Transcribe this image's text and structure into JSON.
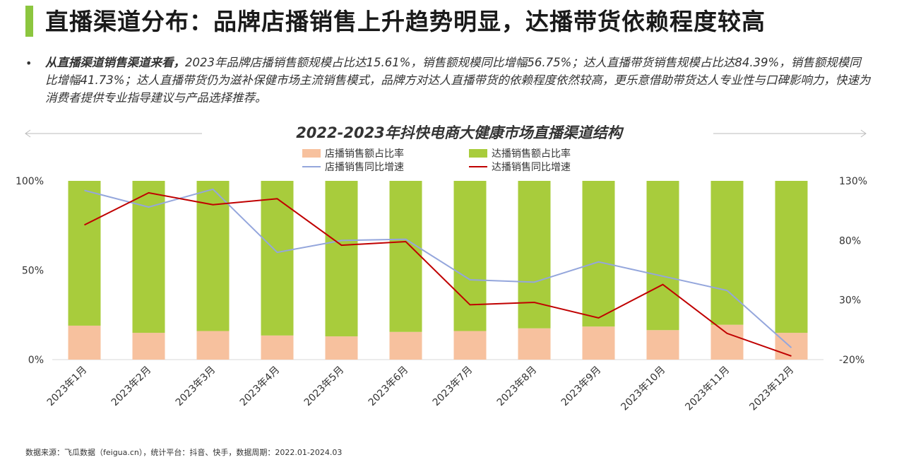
{
  "title": "直播渠道分布：品牌店播销售上升趋势明显，达播带货依赖程度较高",
  "bullet_symbol": "•",
  "body": {
    "lead": "从直播渠道销售渠道来看，",
    "text": "2023年品牌店播销售额规模占比达15.61%，销售额规模同比增幅56.75%；达人直播带货销售规模占比达84.39%，销售额规模同比增幅41.73%；达人直播带货仍为滋补保健市场主流销售模式，品牌方对达人直播带货的依赖程度依然较高，更乐意借助带货达人专业性与口碑影响力，快速为消费者提供专业指导建议与产品选择推荐。"
  },
  "source": "数据来源：飞瓜数据（feigua.cn），统计平台：抖音、快手，数据周期：2022.01-2024.03",
  "colors": {
    "accent": "#8cc63f",
    "store_bar": "#f7c19e",
    "talent_bar": "#a8cc3c",
    "store_line": "#94a6dc",
    "talent_line": "#c00000"
  },
  "chart_data": {
    "type": "bar",
    "title": "2022-2023年抖快电商大健康市场直播渠道结构",
    "categories": [
      "2023年1月",
      "2023年2月",
      "2023年3月",
      "2023年4月",
      "2023年5月",
      "2023年6月",
      "2023年7月",
      "2023年8月",
      "2023年9月",
      "2023年10月",
      "2023年11月",
      "2023年12月"
    ],
    "series": [
      {
        "name": "店播销售额占比率",
        "kind": "bar",
        "axis": "left",
        "values": [
          19,
          15,
          16,
          13.5,
          13,
          15.5,
          16,
          17.5,
          18.5,
          16.5,
          19.5,
          15
        ]
      },
      {
        "name": "达播销售额占比率",
        "kind": "bar",
        "axis": "left",
        "values": [
          81,
          85,
          84,
          86.5,
          87,
          84.5,
          84,
          82.5,
          81.5,
          83.5,
          80.5,
          85
        ]
      },
      {
        "name": "店播销售同比增速",
        "kind": "line",
        "axis": "right",
        "values": [
          122,
          108,
          123,
          70,
          80,
          81,
          47,
          45,
          62,
          50,
          38,
          -10
        ]
      },
      {
        "name": "达播销售同比增速",
        "kind": "line",
        "axis": "right",
        "values": [
          93,
          120,
          110,
          115,
          76,
          79,
          26,
          28,
          15,
          43,
          2,
          -17
        ]
      }
    ],
    "y_left": {
      "ticks": [
        "100%",
        "50%",
        "0%"
      ],
      "range": [
        0,
        100
      ]
    },
    "y_right": {
      "ticks": [
        "130%",
        "80%",
        "30%",
        "-20%"
      ],
      "range": [
        -20,
        130
      ]
    },
    "legend_position": "top-center"
  }
}
